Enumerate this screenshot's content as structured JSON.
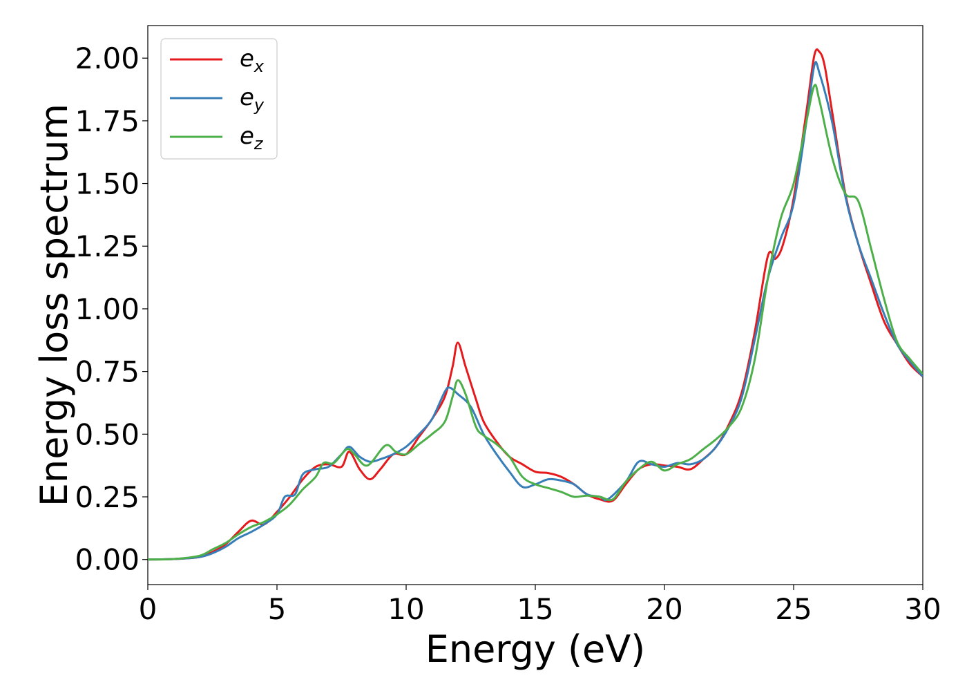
{
  "chart_data": {
    "type": "line",
    "title": "",
    "xlabel": "Energy (eV)",
    "ylabel": "Energy loss spectrum",
    "xlim": [
      0,
      30
    ],
    "ylim": [
      -0.1,
      2.13
    ],
    "xticks": [
      "0",
      "5",
      "10",
      "15",
      "20",
      "25",
      "30"
    ],
    "yticks": [
      "0.00",
      "0.25",
      "0.50",
      "0.75",
      "1.00",
      "1.25",
      "1.50",
      "1.75",
      "2.00"
    ],
    "grid": false,
    "legend_position": "top-left",
    "series": [
      {
        "name": "e",
        "subscript": "x",
        "color": "#e41a1c",
        "points": [
          [
            0,
            0
          ],
          [
            1,
            0.002
          ],
          [
            2,
            0.01
          ],
          [
            2.5,
            0.03
          ],
          [
            3,
            0.06
          ],
          [
            3.5,
            0.11
          ],
          [
            4,
            0.155
          ],
          [
            4.5,
            0.14
          ],
          [
            5,
            0.19
          ],
          [
            5.5,
            0.25
          ],
          [
            6,
            0.32
          ],
          [
            6.5,
            0.37
          ],
          [
            7,
            0.38
          ],
          [
            7.5,
            0.37
          ],
          [
            7.8,
            0.43
          ],
          [
            8.2,
            0.36
          ],
          [
            8.6,
            0.32
          ],
          [
            9,
            0.36
          ],
          [
            9.5,
            0.42
          ],
          [
            10,
            0.42
          ],
          [
            10.5,
            0.49
          ],
          [
            11,
            0.56
          ],
          [
            11.5,
            0.65
          ],
          [
            11.8,
            0.77
          ],
          [
            12,
            0.865
          ],
          [
            12.3,
            0.77
          ],
          [
            12.7,
            0.64
          ],
          [
            13,
            0.55
          ],
          [
            13.5,
            0.47
          ],
          [
            14,
            0.41
          ],
          [
            14.5,
            0.38
          ],
          [
            15,
            0.35
          ],
          [
            15.5,
            0.345
          ],
          [
            16,
            0.33
          ],
          [
            16.5,
            0.3
          ],
          [
            17,
            0.26
          ],
          [
            17.5,
            0.24
          ],
          [
            18,
            0.235
          ],
          [
            18.5,
            0.3
          ],
          [
            19,
            0.36
          ],
          [
            19.5,
            0.38
          ],
          [
            20,
            0.375
          ],
          [
            20.5,
            0.37
          ],
          [
            21,
            0.36
          ],
          [
            21.5,
            0.4
          ],
          [
            22,
            0.45
          ],
          [
            22.5,
            0.54
          ],
          [
            23,
            0.67
          ],
          [
            23.5,
            0.91
          ],
          [
            24,
            1.21
          ],
          [
            24.3,
            1.2
          ],
          [
            24.6,
            1.26
          ],
          [
            25,
            1.44
          ],
          [
            25.5,
            1.79
          ],
          [
            25.8,
            2.01
          ],
          [
            26,
            2.025
          ],
          [
            26.2,
            1.97
          ],
          [
            26.5,
            1.78
          ],
          [
            27,
            1.46
          ],
          [
            27.5,
            1.26
          ],
          [
            28,
            1.1
          ],
          [
            28.5,
            0.95
          ],
          [
            29,
            0.86
          ],
          [
            29.5,
            0.78
          ],
          [
            30,
            0.73
          ]
        ]
      },
      {
        "name": "e",
        "subscript": "y",
        "color": "#377eb8",
        "points": [
          [
            0,
            0
          ],
          [
            1,
            0.002
          ],
          [
            2,
            0.01
          ],
          [
            2.5,
            0.025
          ],
          [
            3,
            0.05
          ],
          [
            3.5,
            0.085
          ],
          [
            4,
            0.11
          ],
          [
            4.5,
            0.14
          ],
          [
            5,
            0.18
          ],
          [
            5.3,
            0.25
          ],
          [
            5.7,
            0.26
          ],
          [
            6,
            0.34
          ],
          [
            6.5,
            0.36
          ],
          [
            7,
            0.37
          ],
          [
            7.5,
            0.42
          ],
          [
            7.8,
            0.45
          ],
          [
            8.2,
            0.41
          ],
          [
            8.6,
            0.39
          ],
          [
            9,
            0.4
          ],
          [
            9.5,
            0.42
          ],
          [
            10,
            0.45
          ],
          [
            10.5,
            0.5
          ],
          [
            11,
            0.56
          ],
          [
            11.5,
            0.67
          ],
          [
            11.7,
            0.685
          ],
          [
            12,
            0.66
          ],
          [
            12.5,
            0.61
          ],
          [
            13,
            0.5
          ],
          [
            13.5,
            0.42
          ],
          [
            14,
            0.35
          ],
          [
            14.5,
            0.29
          ],
          [
            15,
            0.3
          ],
          [
            15.5,
            0.32
          ],
          [
            16,
            0.315
          ],
          [
            16.5,
            0.3
          ],
          [
            17,
            0.26
          ],
          [
            17.5,
            0.25
          ],
          [
            17.8,
            0.24
          ],
          [
            18.5,
            0.31
          ],
          [
            19,
            0.39
          ],
          [
            19.5,
            0.38
          ],
          [
            20,
            0.37
          ],
          [
            20.5,
            0.385
          ],
          [
            21,
            0.38
          ],
          [
            21.5,
            0.4
          ],
          [
            22,
            0.45
          ],
          [
            22.5,
            0.53
          ],
          [
            23,
            0.65
          ],
          [
            23.5,
            0.88
          ],
          [
            24,
            1.12
          ],
          [
            24.5,
            1.28
          ],
          [
            25,
            1.42
          ],
          [
            25.5,
            1.75
          ],
          [
            25.8,
            1.97
          ],
          [
            26,
            1.94
          ],
          [
            26.5,
            1.74
          ],
          [
            27,
            1.45
          ],
          [
            27.5,
            1.26
          ],
          [
            28,
            1.12
          ],
          [
            28.5,
            0.98
          ],
          [
            29,
            0.86
          ],
          [
            29.5,
            0.79
          ],
          [
            30,
            0.73
          ]
        ]
      },
      {
        "name": "e",
        "subscript": "z",
        "color": "#4daf4a",
        "points": [
          [
            0,
            0
          ],
          [
            1,
            0.002
          ],
          [
            2,
            0.015
          ],
          [
            2.5,
            0.04
          ],
          [
            3,
            0.065
          ],
          [
            3.5,
            0.1
          ],
          [
            4,
            0.13
          ],
          [
            4.5,
            0.15
          ],
          [
            5,
            0.18
          ],
          [
            5.5,
            0.22
          ],
          [
            6,
            0.28
          ],
          [
            6.5,
            0.33
          ],
          [
            6.8,
            0.385
          ],
          [
            7.2,
            0.385
          ],
          [
            7.7,
            0.44
          ],
          [
            8,
            0.42
          ],
          [
            8.5,
            0.375
          ],
          [
            9.2,
            0.455
          ],
          [
            9.6,
            0.43
          ],
          [
            10,
            0.42
          ],
          [
            10.5,
            0.46
          ],
          [
            11,
            0.5
          ],
          [
            11.5,
            0.55
          ],
          [
            11.8,
            0.65
          ],
          [
            12,
            0.715
          ],
          [
            12.3,
            0.66
          ],
          [
            12.7,
            0.53
          ],
          [
            13,
            0.495
          ],
          [
            13.5,
            0.46
          ],
          [
            14,
            0.41
          ],
          [
            14.5,
            0.33
          ],
          [
            15,
            0.3
          ],
          [
            15.5,
            0.285
          ],
          [
            16,
            0.27
          ],
          [
            16.5,
            0.25
          ],
          [
            17,
            0.255
          ],
          [
            17.5,
            0.25
          ],
          [
            18,
            0.24
          ],
          [
            18.5,
            0.31
          ],
          [
            19,
            0.36
          ],
          [
            19.5,
            0.39
          ],
          [
            20,
            0.355
          ],
          [
            20.5,
            0.38
          ],
          [
            21,
            0.4
          ],
          [
            21.5,
            0.44
          ],
          [
            22,
            0.48
          ],
          [
            22.5,
            0.53
          ],
          [
            23,
            0.61
          ],
          [
            23.5,
            0.8
          ],
          [
            24,
            1.12
          ],
          [
            24.5,
            1.36
          ],
          [
            25,
            1.5
          ],
          [
            25.5,
            1.75
          ],
          [
            25.8,
            1.89
          ],
          [
            26,
            1.83
          ],
          [
            26.5,
            1.6
          ],
          [
            27,
            1.46
          ],
          [
            27.5,
            1.43
          ],
          [
            28,
            1.24
          ],
          [
            28.5,
            1.04
          ],
          [
            29,
            0.87
          ],
          [
            29.5,
            0.8
          ],
          [
            30,
            0.74
          ]
        ]
      }
    ]
  }
}
